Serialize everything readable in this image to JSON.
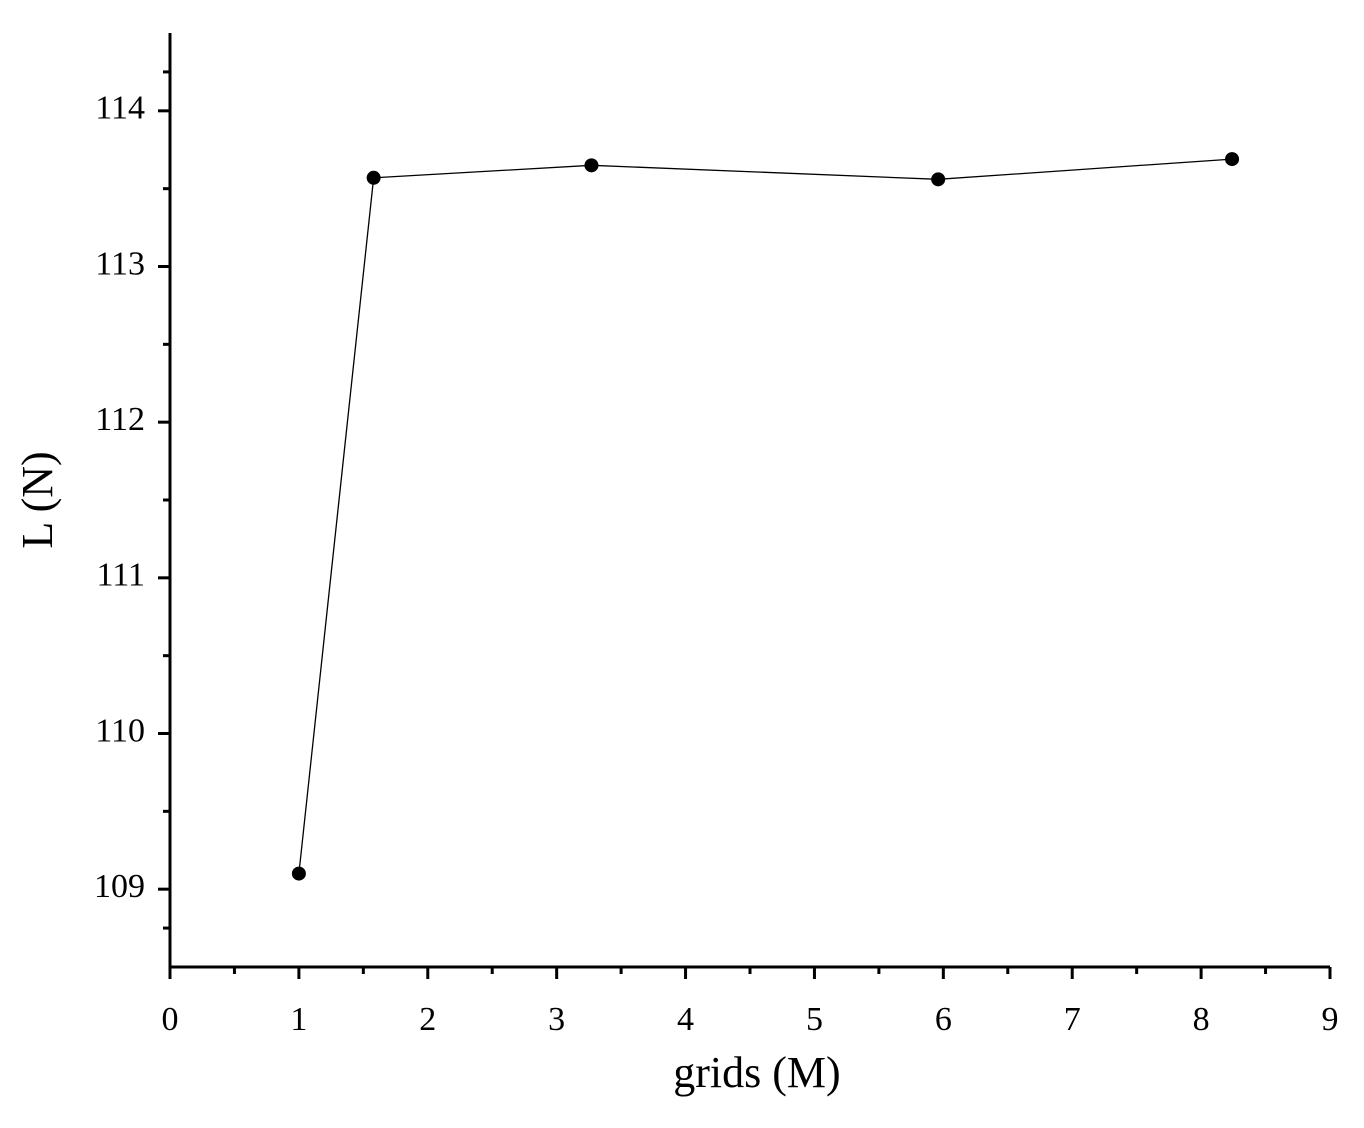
{
  "chart_data": {
    "type": "line",
    "x_label": "grids (M)",
    "y_label": "L (N)",
    "x": [
      1.0,
      1.58,
      3.27,
      5.96,
      8.24
    ],
    "series": [
      {
        "color": "#000000",
        "values": [
          109.1,
          113.57,
          113.65,
          113.56,
          113.69
        ]
      }
    ],
    "xlim": [
      0,
      9
    ],
    "xticks": [
      0,
      1,
      2,
      3,
      4,
      5,
      6,
      7,
      8,
      9
    ],
    "ylim": [
      108.5,
      114.5
    ],
    "yticks": [
      109,
      110,
      111,
      112,
      113,
      114
    ],
    "grid": false,
    "markers": true
  }
}
